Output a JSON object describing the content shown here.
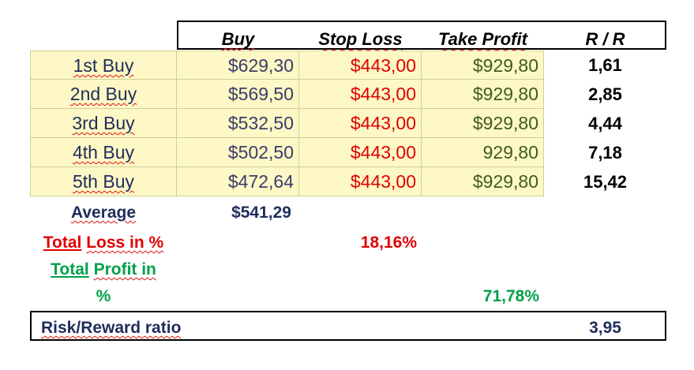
{
  "headers": {
    "buy": "Buy",
    "stop_loss": "Stop Loss",
    "take_profit": "Take Profit",
    "rr": "R / R"
  },
  "rows": [
    {
      "label": "1st Buy",
      "buy": "$629,30",
      "stop_loss": "$443,00",
      "take_profit": "$929,80",
      "rr": "1,61"
    },
    {
      "label": "2nd Buy",
      "buy": "$569,50",
      "stop_loss": "$443,00",
      "take_profit": "$929,80",
      "rr": "2,85"
    },
    {
      "label": "3rd Buy",
      "buy": "$532,50",
      "stop_loss": "$443,00",
      "take_profit": "$929,80",
      "rr": "4,44"
    },
    {
      "label": "4th Buy",
      "buy": "$502,50",
      "stop_loss": "$443,00",
      "take_profit": "929,80",
      "rr": "7,18"
    },
    {
      "label": "5th Buy",
      "buy": "$472,64",
      "stop_loss": "$443,00",
      "take_profit": "$929,80",
      "rr": "15,42"
    }
  ],
  "average": {
    "label": "Average",
    "value": "$541,29"
  },
  "total_loss": {
    "label_part1": "Total",
    "label_part2": "Loss in %",
    "value": "18,16%"
  },
  "total_profit": {
    "label_line1_part1": "Total",
    "label_line1_part2": "Profit in",
    "label_line2": "%",
    "value": "71,78%"
  },
  "risk_reward": {
    "label": "Risk/Reward ratio",
    "value": "3,95"
  },
  "colors": {
    "cell_bg": "#fdf8c5",
    "stop_loss": "#e00000",
    "take_profit": "#3f5a1e",
    "profit_green": "#00a04a",
    "navy": "#1f2d5c"
  }
}
